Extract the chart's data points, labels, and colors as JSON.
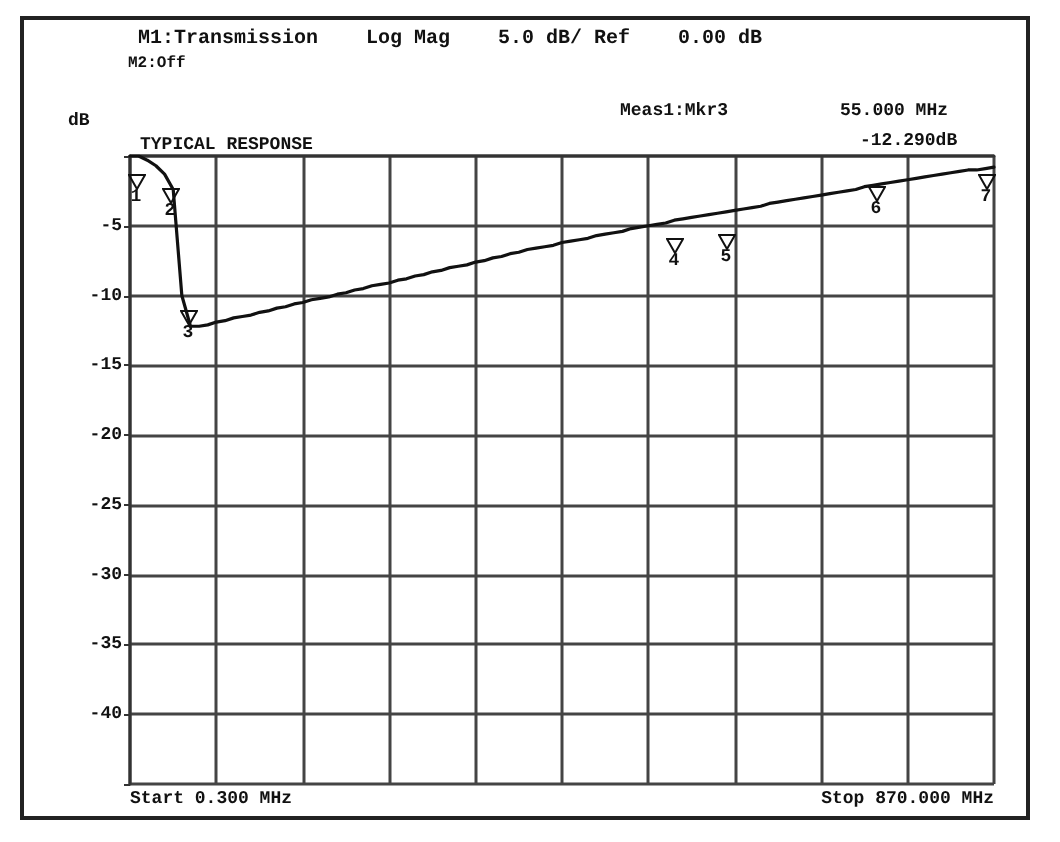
{
  "chart_data": {
    "type": "line",
    "title": "M1:Transmission    Log Mag    5.0 dB/ Ref    0.00 dB",
    "subtitle": "M2:Off",
    "ylabel": "dB",
    "categories": [
      null,
      null,
      null,
      null,
      null,
      null,
      null,
      null,
      null,
      null,
      null,
      null,
      null,
      null,
      null,
      null,
      null,
      null,
      null,
      null,
      null,
      null,
      null,
      null,
      null,
      null,
      null,
      null,
      null,
      null,
      null,
      null,
      null,
      null,
      null,
      null,
      null,
      null,
      null,
      null,
      null,
      null,
      null,
      null,
      null,
      null,
      null,
      null,
      null,
      null,
      null,
      null,
      null,
      null,
      null,
      null,
      null,
      null,
      null,
      null,
      null,
      null,
      null,
      null,
      null,
      null,
      null,
      null,
      null,
      null,
      null,
      null,
      null,
      null,
      null,
      null,
      null,
      null,
      null,
      null,
      null,
      null,
      null,
      null,
      null,
      null,
      null,
      null,
      null,
      null,
      null,
      null,
      null,
      null,
      null,
      null,
      null,
      null,
      null,
      null,
      null
    ],
    "series": [
      {
        "color": "#111111",
        "values": [
          0,
          0,
          -0.3,
          -0.7,
          -1.3,
          -2.4,
          -10,
          -12.2,
          -12.2,
          -12.1,
          -11.9,
          -11.8,
          -11.6,
          -11.5,
          -11.4,
          -11.2,
          -11.1,
          -10.9,
          -10.8,
          -10.6,
          -10.5,
          -10.3,
          -10.2,
          -10.1,
          -9.9,
          -9.8,
          -9.6,
          -9.5,
          -9.3,
          -9.2,
          -9.1,
          -8.9,
          -8.8,
          -8.6,
          -8.5,
          -8.3,
          -8.2,
          -8,
          -7.9,
          -7.8,
          -7.6,
          -7.5,
          -7.3,
          -7.2,
          -7,
          -6.9,
          -6.7,
          -6.6,
          -6.5,
          -6.4,
          -6.2,
          -6.1,
          -6,
          -5.9,
          -5.7,
          -5.6,
          -5.5,
          -5.4,
          -5.2,
          -5.1,
          -5,
          -4.9,
          -4.8,
          -4.6,
          -4.5,
          -4.4,
          -4.3,
          -4.2,
          -4.1,
          -4,
          -3.9,
          -3.8,
          -3.7,
          -3.6,
          -3.4,
          -3.3,
          -3.2,
          -3.1,
          -3,
          -2.9,
          -2.8,
          -2.7,
          -2.6,
          -2.5,
          -2.4,
          -2.2,
          -2.1,
          -2,
          -1.9,
          -1.8,
          -1.7,
          -1.6,
          -1.5,
          -1.4,
          -1.3,
          -1.2,
          -1.1,
          -1,
          -1,
          -0.9,
          -0.8
        ]
      }
    ],
    "ylim": [
      -45,
      0
    ],
    "yticks": [
      {
        "value": 0,
        "label": null
      },
      -5,
      -10,
      -15,
      -20,
      -25,
      -30,
      -35,
      -40,
      {
        "value": -45,
        "label": null
      }
    ],
    "tick_labels": "y",
    "grid": true,
    "line_style": "solid",
    "annotations": [
      "TYPICAL RESPONSE",
      "Meas1:Mkr3",
      "55.000 MHz",
      "-12.290dB",
      "Start 0.300 MHz",
      "Stop 870.000 MHz",
      "1",
      "2",
      "3",
      "4",
      "5",
      "6",
      "7"
    ]
  }
}
